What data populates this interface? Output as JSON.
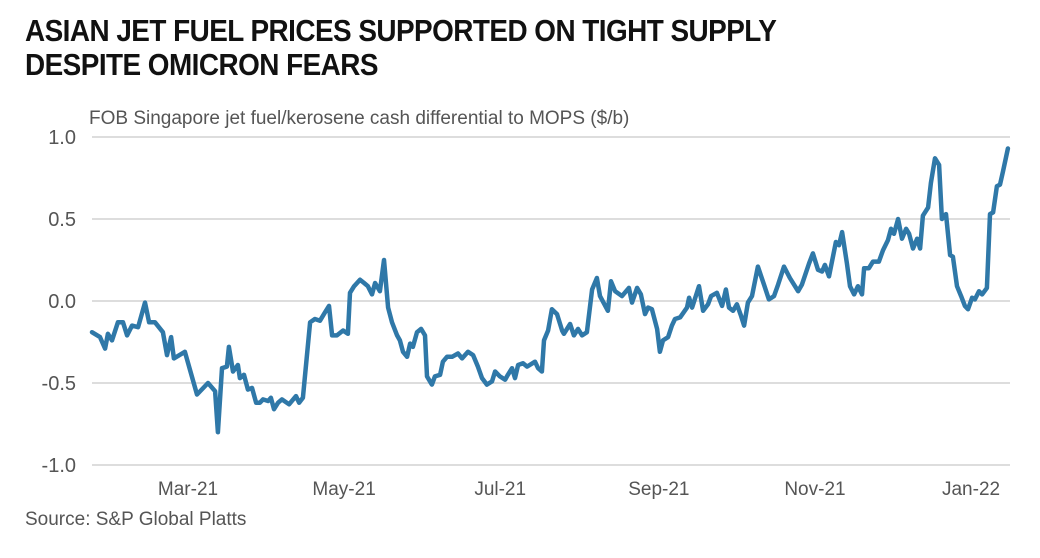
{
  "chart_data": {
    "type": "line",
    "title": "ASIAN JET FUEL PRICES SUPPORTED ON TIGHT SUPPLY DESPITE OMICRON FEARS",
    "title_lines": [
      "ASIAN JET FUEL PRICES SUPPORTED ON TIGHT SUPPLY",
      "DESPITE OMICRON FEARS"
    ],
    "subtitle": "FOB Singapore jet fuel/kerosene cash differential to MOPS ($/b)",
    "source": "Source: S&P Global Platts",
    "xlabel": "",
    "ylabel": "FOB Singapore jet fuel/kerosene cash differential to MOPS ($/b)",
    "x_unit": "days since 2021-01-01",
    "xlim": [
      21,
      380
    ],
    "ylim": [
      -1.0,
      1.0
    ],
    "grid": true,
    "legend": "none",
    "line_color": "#2f78a8",
    "grid_color": "#dddddd",
    "y_ticks": [
      {
        "value": 1.0,
        "label": "1.0"
      },
      {
        "value": 0.5,
        "label": "0.5"
      },
      {
        "value": 0.0,
        "label": "0.0"
      },
      {
        "value": -0.5,
        "label": "-0.5"
      },
      {
        "value": -1.0,
        "label": "-1.0"
      }
    ],
    "x_ticks": [
      {
        "value": 59,
        "label": "Mar-21"
      },
      {
        "value": 120,
        "label": "May-21"
      },
      {
        "value": 181,
        "label": "Jul-21"
      },
      {
        "value": 243,
        "label": "Sep-21"
      },
      {
        "value": 304,
        "label": "Nov-21"
      },
      {
        "value": 365,
        "label": "Jan-22"
      }
    ],
    "series": [
      {
        "name": "FOB Singapore jet fuel/kerosene cash differential",
        "x": [
          21.5,
          24.6,
          26.6,
          27.7,
          29.3,
          31.6,
          33.6,
          35.2,
          37.1,
          39.5,
          42.2,
          43.8,
          46.1,
          49.2,
          50.8,
          52.4,
          53.5,
          57.8,
          59.8,
          62.5,
          66.8,
          69.6,
          70.7,
          72.3,
          74.2,
          75.0,
          76.6,
          78.5,
          79.3,
          80.9,
          82.4,
          84.0,
          85.6,
          87.1,
          88.3,
          90.3,
          91.4,
          92.6,
          94.2,
          95.7,
          98.5,
          101.2,
          102.4,
          103.9,
          106.7,
          108.6,
          110.6,
          112.5,
          114.1,
          115.3,
          117.2,
          119.6,
          121.5,
          122.3,
          123.9,
          126.2,
          127.8,
          129.3,
          130.9,
          132.1,
          134.0,
          135.6,
          137.2,
          138.7,
          140.7,
          141.8,
          143.0,
          144.6,
          145.8,
          146.9,
          148.5,
          150.1,
          151.6,
          152.4,
          154.3,
          155.5,
          157.5,
          158.6,
          160.2,
          162.2,
          164.5,
          166.1,
          168.4,
          170.4,
          172.3,
          173.9,
          175.8,
          177.8,
          179.0,
          180.9,
          182.9,
          184.0,
          185.6,
          186.8,
          188.0,
          189.9,
          191.5,
          194.6,
          195.8,
          197.3,
          198.1,
          199.7,
          201.2,
          203.2,
          205.2,
          205.9,
          208.3,
          209.8,
          211.4,
          213.0,
          214.9,
          216.9,
          218.8,
          220.0,
          223.1,
          224.3,
          225.9,
          228.6,
          231.3,
          232.5,
          234.5,
          236.0,
          237.6,
          238.8,
          240.3,
          242.3,
          243.4,
          244.6,
          246.6,
          248.1,
          249.3,
          251.3,
          254.0,
          254.8,
          256.0,
          258.7,
          260.3,
          262.2,
          263.4,
          265.7,
          267.7,
          269.2,
          270.4,
          272.0,
          273.5,
          275.1,
          276.3,
          277.8,
          279.4,
          281.7,
          284.1,
          286.0,
          288.0,
          289.6,
          291.9,
          294.2,
          297.4,
          298.9,
          301.7,
          303.2,
          305.2,
          306.8,
          307.9,
          309.5,
          312.2,
          313.4,
          314.6,
          316.5,
          317.7,
          319.3,
          320.8,
          322.4,
          323.2,
          325.1,
          326.7,
          329.0,
          330.6,
          332.5,
          333.7,
          334.9,
          336.5,
          338.0,
          339.6,
          340.8,
          342.3,
          343.9,
          345.1,
          346.2,
          348.2,
          349.3,
          350.9,
          352.5,
          353.6,
          355.2,
          356.8,
          357.9,
          359.5,
          361.1,
          362.6,
          363.8,
          365.4,
          366.5,
          368.1,
          369.3,
          371.2,
          372.4,
          373.6,
          375.1,
          376.3,
          377.5,
          379.4
        ],
        "values": [
          -0.19,
          -0.22,
          -0.29,
          -0.2,
          -0.24,
          -0.13,
          -0.13,
          -0.21,
          -0.15,
          -0.16,
          -0.01,
          -0.13,
          -0.13,
          -0.19,
          -0.33,
          -0.22,
          -0.35,
          -0.31,
          -0.42,
          -0.57,
          -0.5,
          -0.55,
          -0.8,
          -0.41,
          -0.4,
          -0.28,
          -0.43,
          -0.39,
          -0.47,
          -0.45,
          -0.54,
          -0.53,
          -0.62,
          -0.62,
          -0.6,
          -0.61,
          -0.59,
          -0.66,
          -0.62,
          -0.6,
          -0.63,
          -0.58,
          -0.62,
          -0.59,
          -0.13,
          -0.11,
          -0.12,
          -0.07,
          -0.03,
          -0.21,
          -0.21,
          -0.18,
          -0.2,
          0.05,
          0.09,
          0.13,
          0.11,
          0.09,
          0.04,
          0.11,
          0.06,
          0.25,
          -0.04,
          -0.13,
          -0.21,
          -0.24,
          -0.31,
          -0.34,
          -0.26,
          -0.28,
          -0.19,
          -0.17,
          -0.21,
          -0.46,
          -0.51,
          -0.46,
          -0.45,
          -0.37,
          -0.34,
          -0.34,
          -0.32,
          -0.35,
          -0.31,
          -0.33,
          -0.4,
          -0.47,
          -0.51,
          -0.49,
          -0.43,
          -0.46,
          -0.48,
          -0.45,
          -0.41,
          -0.47,
          -0.39,
          -0.38,
          -0.4,
          -0.37,
          -0.41,
          -0.43,
          -0.24,
          -0.18,
          -0.05,
          -0.08,
          -0.18,
          -0.2,
          -0.14,
          -0.21,
          -0.17,
          -0.21,
          -0.19,
          0.07,
          0.14,
          0.03,
          -0.06,
          0.12,
          0.06,
          0.03,
          0.08,
          -0.01,
          0.08,
          0.04,
          -0.08,
          -0.04,
          -0.05,
          -0.17,
          -0.31,
          -0.24,
          -0.22,
          -0.15,
          -0.11,
          -0.1,
          -0.04,
          0.02,
          -0.04,
          0.09,
          -0.06,
          -0.02,
          0.03,
          0.05,
          -0.03,
          0.07,
          -0.04,
          -0.06,
          -0.02,
          -0.09,
          -0.15,
          -0.01,
          0.03,
          0.21,
          0.1,
          0.01,
          0.03,
          0.1,
          0.21,
          0.14,
          0.06,
          0.1,
          0.23,
          0.29,
          0.19,
          0.18,
          0.22,
          0.15,
          0.36,
          0.34,
          0.42,
          0.23,
          0.09,
          0.04,
          0.09,
          0.04,
          0.2,
          0.2,
          0.24,
          0.24,
          0.31,
          0.37,
          0.44,
          0.41,
          0.5,
          0.38,
          0.44,
          0.41,
          0.32,
          0.38,
          0.32,
          0.52,
          0.57,
          0.72,
          0.87,
          0.83,
          0.5,
          0.53,
          0.28,
          0.27,
          0.09,
          0.03,
          -0.03,
          -0.05,
          0.02,
          0.01,
          0.06,
          0.04,
          0.08,
          0.53,
          0.54,
          0.7,
          0.71,
          0.79,
          0.93
        ]
      }
    ]
  }
}
